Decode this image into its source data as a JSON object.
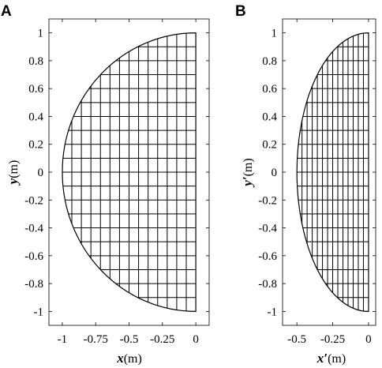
{
  "panels": [
    {
      "id": "A",
      "letter": "A",
      "xlabel_var": "x",
      "xlabel_unit": "(m)",
      "ylabel_var": "y",
      "ylabel_unit": "(m)",
      "xlim": [
        -1.1,
        0.1
      ],
      "ylim": [
        -1.1,
        1.1
      ],
      "x_ticks": [
        -1,
        -0.75,
        -0.5,
        -0.25,
        0
      ],
      "x_tick_labels": [
        "-1",
        "-0.75",
        "-0.5",
        "-0.25",
        "0"
      ],
      "y_ticks": [
        1,
        0.8,
        0.6,
        0.4,
        0.2,
        0,
        -0.2,
        -0.4,
        -0.6,
        -0.8,
        -1
      ],
      "y_tick_labels": [
        "1",
        "0.8",
        "0.6",
        "0.4",
        "0.2",
        "0",
        "-0.2",
        "-0.4",
        "-0.6",
        "-0.8",
        "-1"
      ],
      "shape": "half-ellipse",
      "semi_axis_x": 1.0,
      "semi_axis_y": 1.0,
      "grid_columns": 14,
      "grid_rows": 20
    },
    {
      "id": "B",
      "letter": "B",
      "xlabel_var": "x′",
      "xlabel_unit": "(m)",
      "ylabel_var": "y′",
      "ylabel_unit": "(m)",
      "xlim": [
        -0.6,
        0.05
      ],
      "ylim": [
        -1.1,
        1.1
      ],
      "x_ticks": [
        -0.5,
        -0.25,
        0
      ],
      "x_tick_labels": [
        "-0.5",
        "-0.25",
        "0"
      ],
      "y_ticks": [
        1,
        0.8,
        0.6,
        0.4,
        0.2,
        0,
        -0.2,
        -0.4,
        -0.6,
        -0.8,
        -1
      ],
      "y_tick_labels": [
        "1",
        "0.8",
        "0.6",
        "0.4",
        "0.2",
        "0",
        "-0.2",
        "-0.4",
        "-0.6",
        "-0.8",
        "-1"
      ],
      "shape": "half-ellipse",
      "semi_axis_x": 0.5,
      "semi_axis_y": 1.0,
      "grid_columns": 14,
      "grid_rows": 20
    }
  ]
}
